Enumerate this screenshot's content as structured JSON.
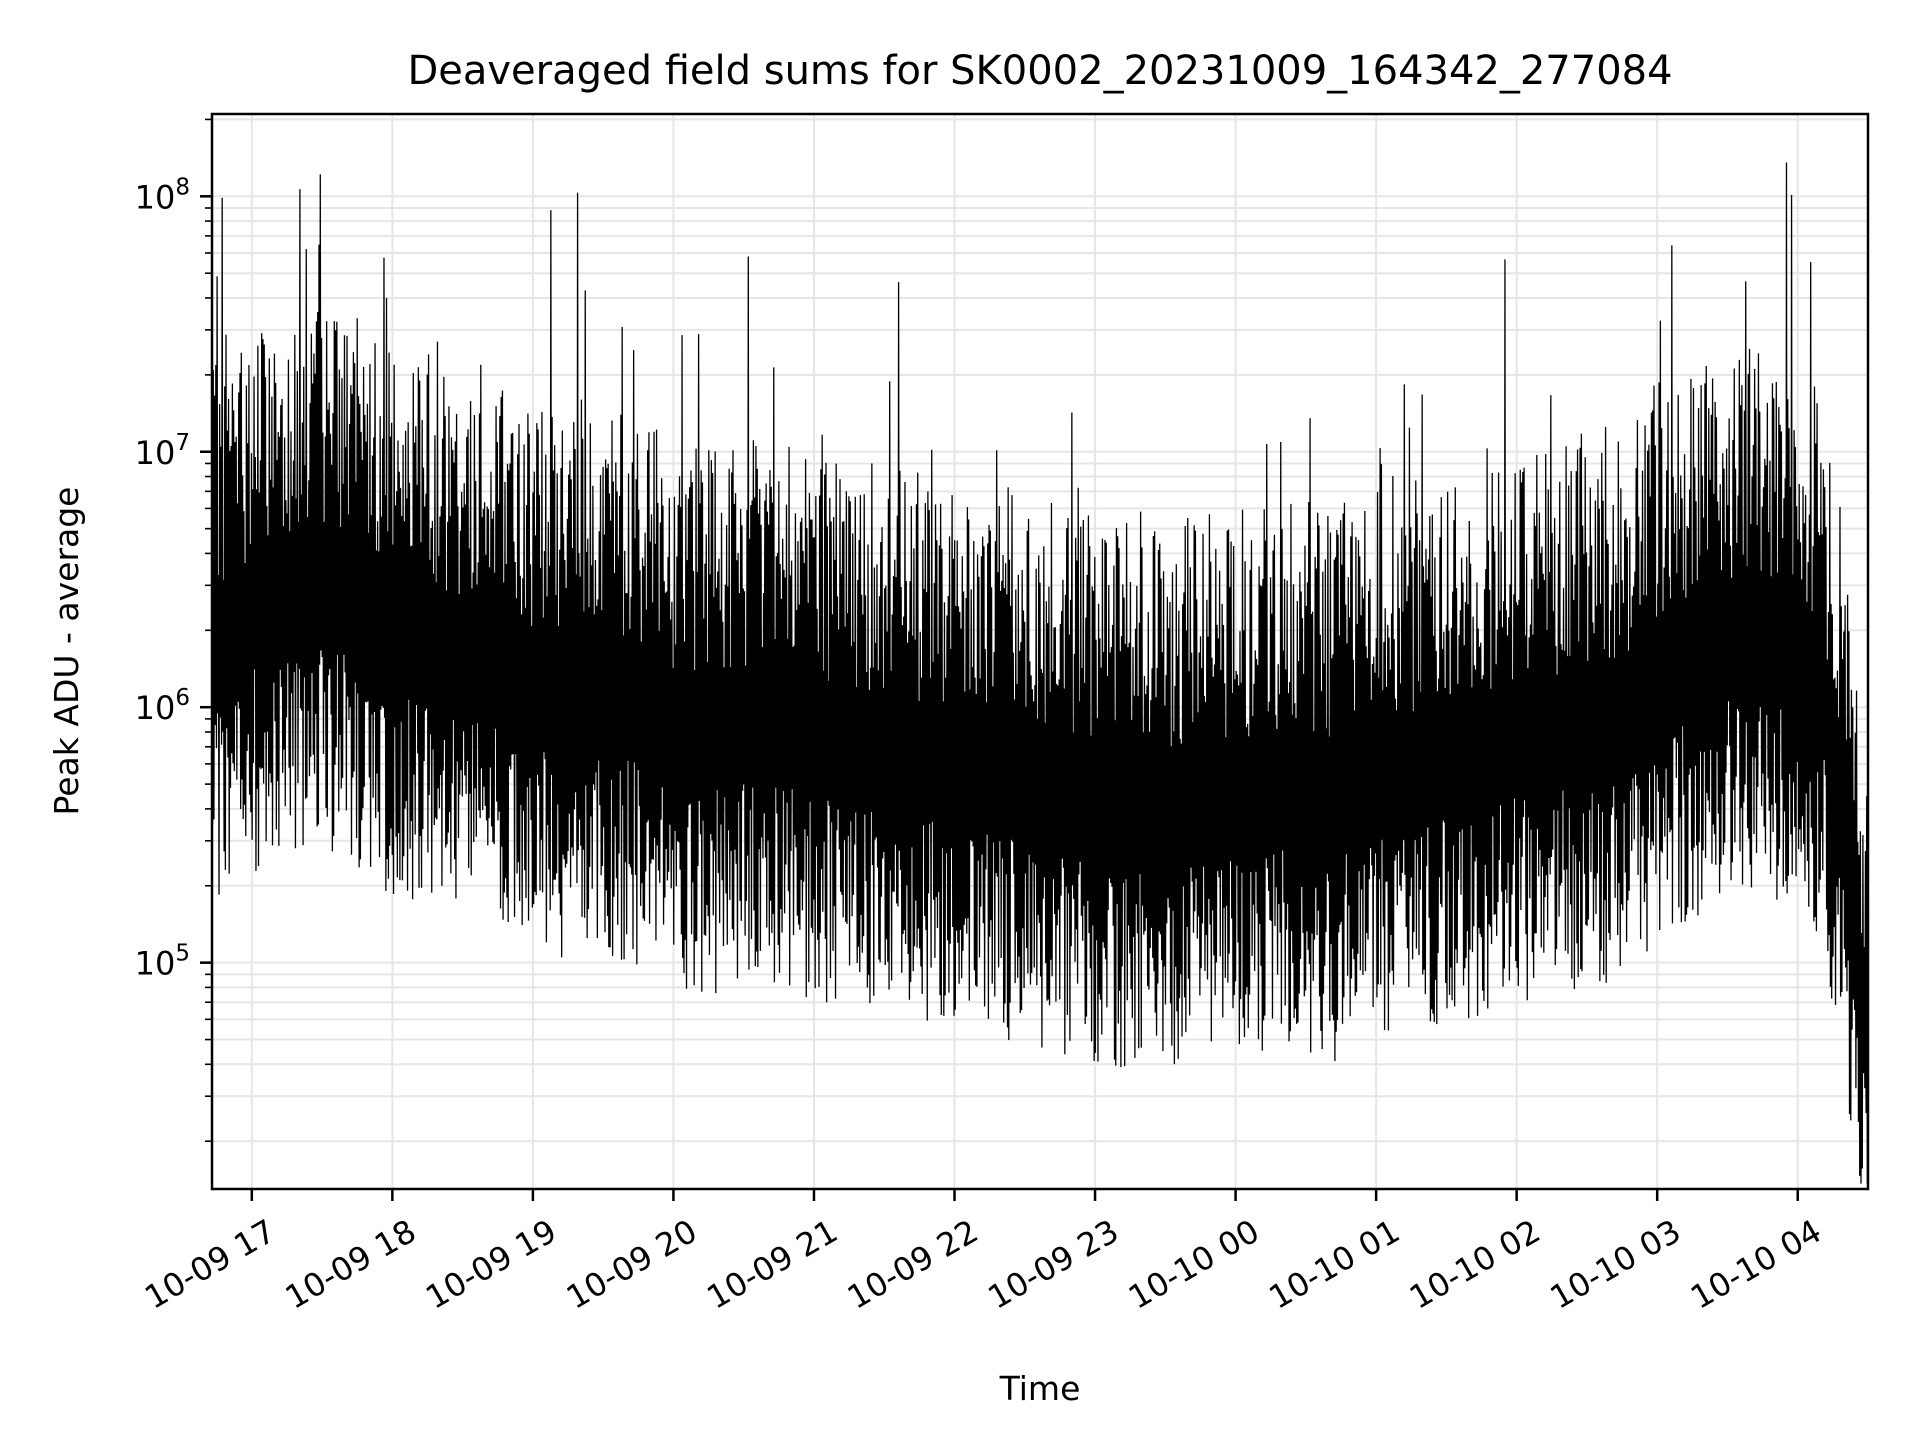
{
  "chart_data": {
    "type": "line",
    "title": "Deaveraged field sums for SK0002_20231009_164342_277084",
    "xlabel": "Time",
    "ylabel": "Peak ADU - average",
    "y_scale": "log",
    "ylim": [
      13000,
      210000000
    ],
    "xlim": [
      "2023-10-09 16:43",
      "2023-10-10 04:30"
    ],
    "x_ticks": [
      "10-09 17",
      "10-09 18",
      "10-09 19",
      "10-09 20",
      "10-09 21",
      "10-09 22",
      "10-09 23",
      "10-10 00",
      "10-10 01",
      "10-10 02",
      "10-10 03",
      "10-10 04"
    ],
    "x_tick_times": [
      "2023-10-09 17:00",
      "2023-10-09 18:00",
      "2023-10-09 19:00",
      "2023-10-09 20:00",
      "2023-10-09 21:00",
      "2023-10-09 22:00",
      "2023-10-09 23:00",
      "2023-10-10 00:00",
      "2023-10-10 01:00",
      "2023-10-10 02:00",
      "2023-10-10 03:00",
      "2023-10-10 04:00"
    ],
    "y_ticks": [
      {
        "base": "10",
        "exp": "5",
        "value": 100000
      },
      {
        "base": "10",
        "exp": "6",
        "value": 1000000
      },
      {
        "base": "10",
        "exp": "7",
        "value": 10000000
      },
      {
        "base": "10",
        "exp": "8",
        "value": 100000000
      }
    ],
    "grid": true,
    "color": "#000000",
    "series": [
      {
        "x": [
          "2023-10-09 16:43",
          "2023-10-09 17:00",
          "2023-10-09 17:20",
          "2023-10-09 17:40",
          "2023-10-09 18:00",
          "2023-10-09 18:20",
          "2023-10-09 18:40",
          "2023-10-09 19:00",
          "2023-10-09 19:20",
          "2023-10-09 19:40",
          "2023-10-09 20:00",
          "2023-10-09 20:20",
          "2023-10-09 20:40",
          "2023-10-09 21:00",
          "2023-10-09 21:20",
          "2023-10-09 21:40",
          "2023-10-09 22:00",
          "2023-10-09 22:20",
          "2023-10-09 22:40",
          "2023-10-09 23:00",
          "2023-10-09 23:20",
          "2023-10-09 23:40",
          "2023-10-10 00:00",
          "2023-10-10 00:20",
          "2023-10-10 00:40",
          "2023-10-10 01:00",
          "2023-10-10 01:20",
          "2023-10-10 01:40",
          "2023-10-10 02:00",
          "2023-10-10 02:20",
          "2023-10-10 02:40",
          "2023-10-10 03:00",
          "2023-10-10 03:20",
          "2023-10-10 03:40",
          "2023-10-10 04:00",
          "2023-10-10 04:10",
          "2023-10-10 04:20",
          "2023-10-10 04:30"
        ],
        "y": [
          1500000,
          2200000,
          2800000,
          2600000,
          1800000,
          1600000,
          1500000,
          1100000,
          1000000,
          1000000,
          800000,
          750000,
          850000,
          700000,
          650000,
          600000,
          550000,
          500000,
          450000,
          400000,
          380000,
          400000,
          420000,
          450000,
          400000,
          500000,
          550000,
          600000,
          700000,
          750000,
          800000,
          1100000,
          1600000,
          1800000,
          1500000,
          1200000,
          300000,
          40000
        ]
      }
    ]
  }
}
